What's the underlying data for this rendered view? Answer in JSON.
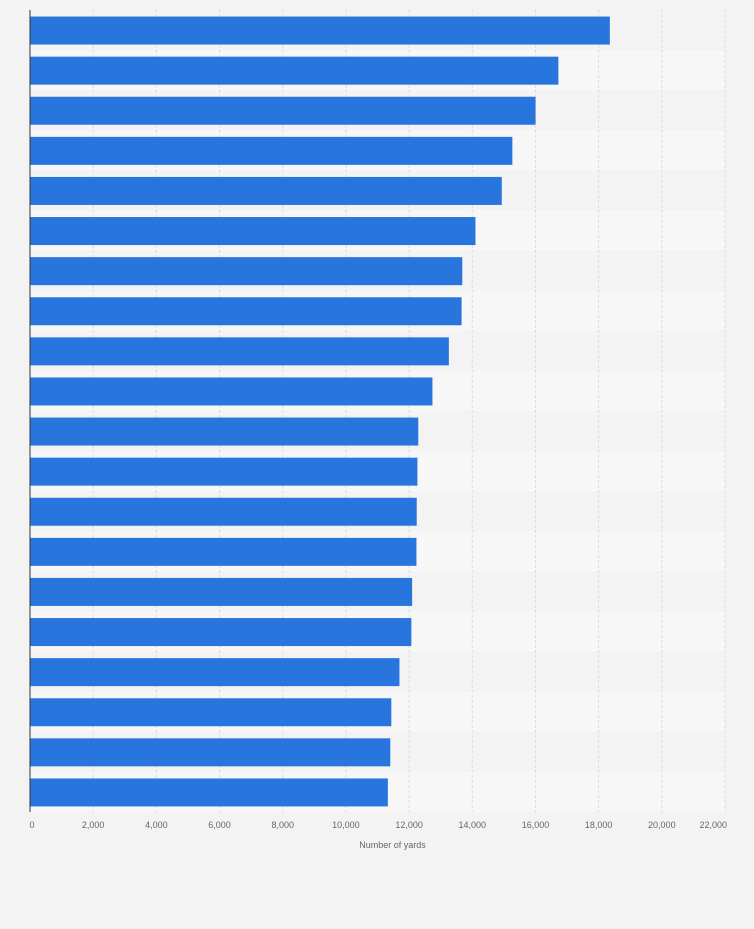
{
  "chart_data": {
    "type": "bar",
    "orientation": "horizontal",
    "title": "",
    "xlabel": "Number of yards",
    "ylabel": "",
    "xlim": [
      0,
      22000
    ],
    "x_ticks": [
      0,
      2000,
      4000,
      6000,
      8000,
      10000,
      12000,
      14000,
      16000,
      18000,
      20000,
      22000
    ],
    "x_tick_labels": [
      "0",
      "2,000",
      "4,000",
      "6,000",
      "8,000",
      "10,000",
      "12,000",
      "14,000",
      "16,000",
      "18,000",
      "20,000",
      "22,000"
    ],
    "grid": true,
    "legend": "none",
    "categories": [
      "",
      "",
      "",
      "",
      "",
      "",
      "",
      "",
      "",
      "",
      "",
      "",
      "",
      "",
      "",
      "",
      "",
      "",
      "",
      ""
    ],
    "values": [
      18355,
      16726,
      16003,
      15269,
      14934,
      14101,
      13684,
      13662,
      13259,
      12739,
      12291,
      12264,
      12242,
      12233,
      12096,
      12072,
      11695,
      11438,
      11404,
      11328
    ],
    "colors": {
      "bar": "#2876dd",
      "background": "#f3f3f3",
      "band_light": "#f7f7f7",
      "band_dark": "#f3f3f3",
      "grid": "#dcdcdc",
      "axis": "#333333",
      "text": "#666666"
    }
  }
}
